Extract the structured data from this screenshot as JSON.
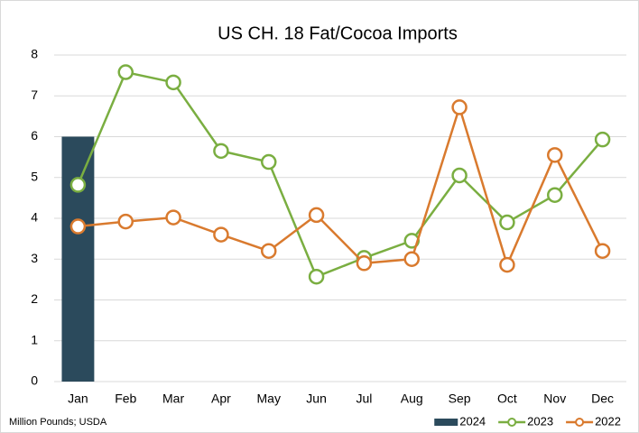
{
  "chart_data": {
    "type": "line",
    "title": "US CH. 18 Fat/Cocoa Imports",
    "note": "Million Pounds; USDA",
    "categories": [
      "Jan",
      "Feb",
      "Mar",
      "Apr",
      "May",
      "Jun",
      "Jul",
      "Aug",
      "Sep",
      "Oct",
      "Nov",
      "Dec"
    ],
    "series": [
      {
        "name": "2024",
        "type": "bar",
        "color": "#2b4a5c",
        "values": [
          6.0,
          null,
          null,
          null,
          null,
          null,
          null,
          null,
          null,
          null,
          null,
          null
        ]
      },
      {
        "name": "2023",
        "type": "line",
        "color": "#7aae41",
        "values": [
          4.82,
          7.58,
          7.33,
          5.65,
          5.38,
          2.57,
          3.03,
          3.45,
          5.05,
          3.9,
          4.57,
          5.93
        ]
      },
      {
        "name": "2022",
        "type": "line",
        "color": "#d97a2e",
        "values": [
          3.8,
          3.92,
          4.02,
          3.6,
          3.2,
          4.08,
          2.9,
          3.0,
          6.72,
          2.86,
          5.55,
          3.2
        ]
      }
    ],
    "ylim": [
      0,
      8
    ],
    "yticks": [
      0,
      1,
      2,
      3,
      4,
      5,
      6,
      7,
      8
    ],
    "grid": true,
    "legend": "bottom-right"
  }
}
